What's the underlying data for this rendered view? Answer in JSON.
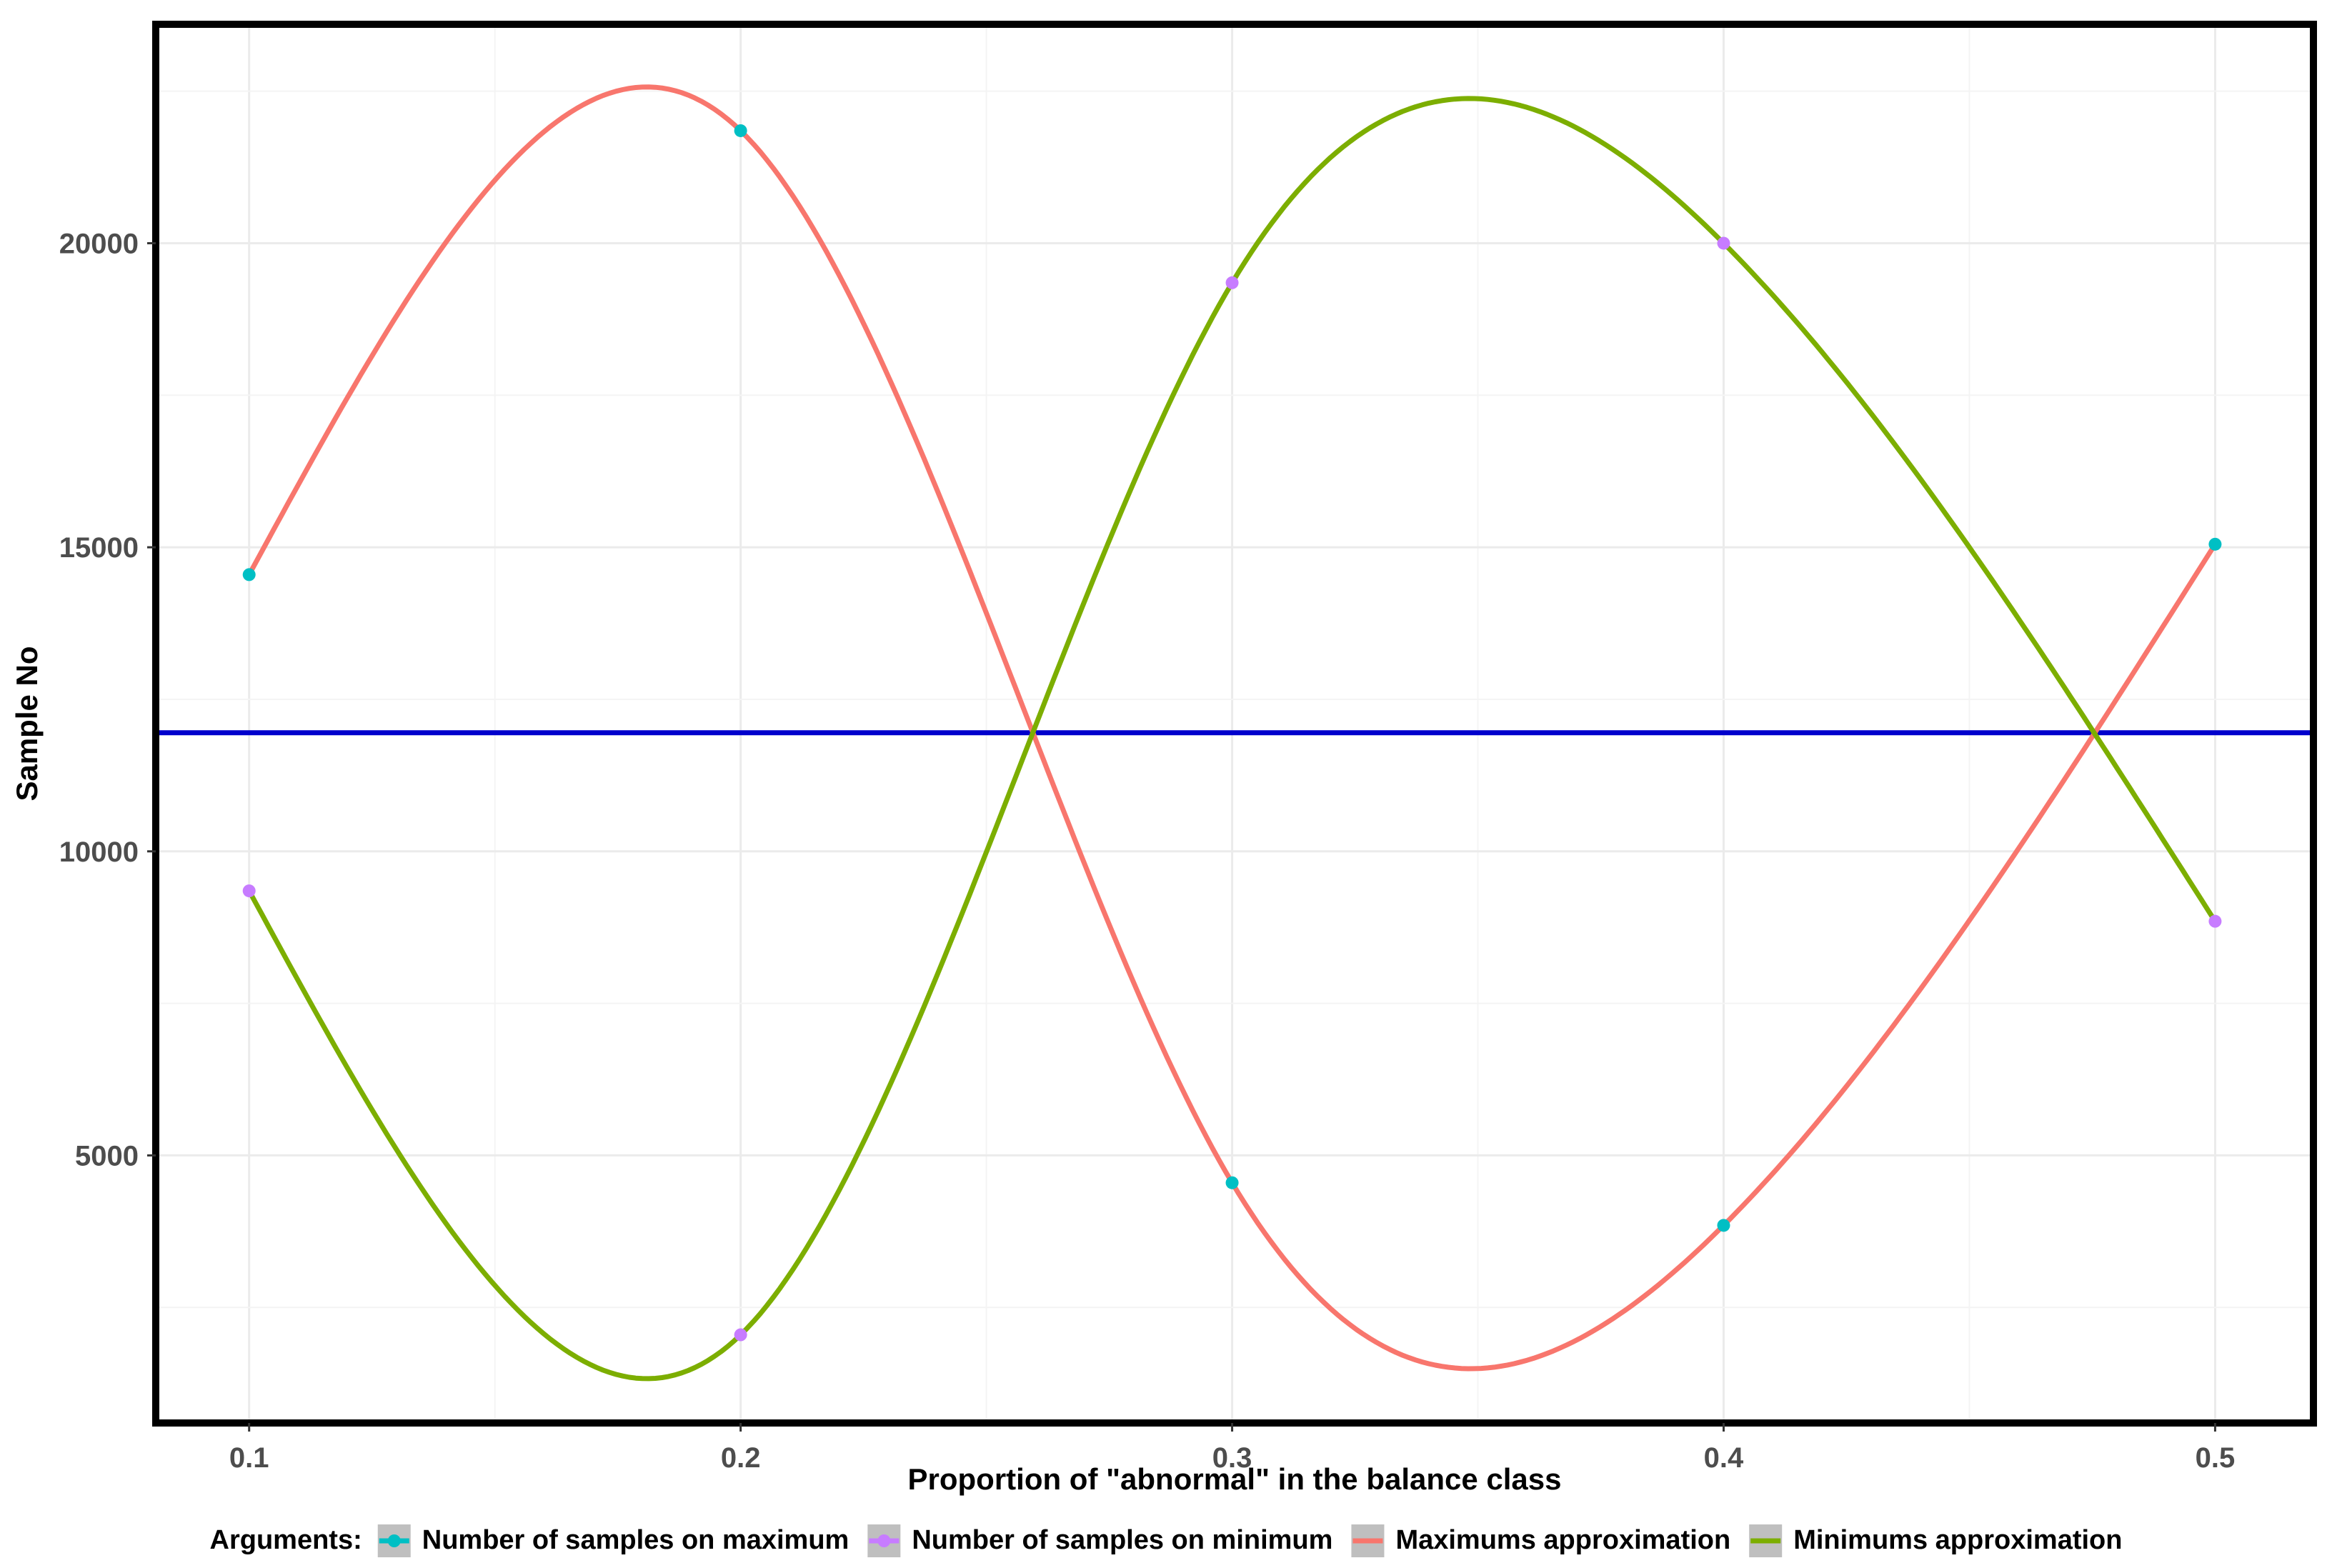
{
  "chart_data": {
    "type": "line",
    "title": "",
    "xlabel": "Proportion of \"abnormal\" in the balance class",
    "ylabel": "Sample No",
    "x": [
      0.1,
      0.2,
      0.3,
      0.4,
      0.5
    ],
    "x_ticks": [
      "0.1",
      "0.2",
      "0.3",
      "0.4",
      "0.5"
    ],
    "y_ticks": [
      "5000",
      "10000",
      "15000",
      "20000"
    ],
    "xlim": [
      0.081,
      0.52
    ],
    "ylim": [
      600,
      23600
    ],
    "grid": true,
    "legend_position": "bottom",
    "legend_title": "Arguments:",
    "series": [
      {
        "name": "Number of samples on maximum",
        "kind": "points",
        "color": "#00BFC4",
        "values": [
          14550,
          21850,
          4550,
          3850,
          15050
        ]
      },
      {
        "name": "Number of samples on minimum",
        "kind": "points",
        "color": "#C77CFF",
        "values": [
          9350,
          2050,
          19350,
          20000,
          8850
        ]
      },
      {
        "name": "Maximums approximation",
        "kind": "curve",
        "color": "#F8766D",
        "values": [
          14550,
          21850,
          4550,
          3850,
          15050
        ]
      },
      {
        "name": "Minimums approximation",
        "kind": "curve",
        "color": "#7CAE00",
        "values": [
          9350,
          2050,
          19350,
          20000,
          8850
        ]
      }
    ],
    "reference_line": {
      "y": 11950,
      "color": "#0000CC"
    }
  }
}
